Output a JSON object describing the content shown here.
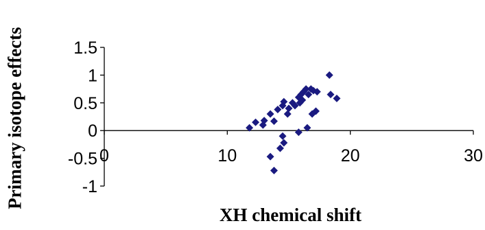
{
  "chart_data": {
    "type": "scatter",
    "title": "",
    "xlabel": "XH chemical shift",
    "ylabel": "Primary isotope effects",
    "xlim": [
      0,
      30
    ],
    "ylim": [
      -1,
      1.5
    ],
    "x_ticks": [
      0,
      10,
      20,
      30
    ],
    "x_tick_labels": [
      "0",
      "10",
      "20",
      "30"
    ],
    "y_ticks": [
      1.5,
      1,
      0.5,
      0,
      -0.5,
      -1
    ],
    "y_tick_labels": [
      "1.5",
      "1",
      "0.5",
      "0",
      "-0.5",
      "-1"
    ],
    "grid": false,
    "legend": "none",
    "marker": "diamond",
    "marker_color": "#1a1a80",
    "series": [
      {
        "points": [
          [
            11.8,
            0.05
          ],
          [
            12.3,
            0.15
          ],
          [
            12.9,
            0.1
          ],
          [
            13.0,
            0.18
          ],
          [
            13.5,
            0.3
          ],
          [
            13.8,
            0.17
          ],
          [
            14.1,
            0.38
          ],
          [
            14.5,
            0.45
          ],
          [
            14.6,
            0.52
          ],
          [
            14.9,
            0.3
          ],
          [
            15.0,
            0.4
          ],
          [
            15.3,
            0.5
          ],
          [
            15.5,
            0.45
          ],
          [
            15.8,
            0.6
          ],
          [
            15.9,
            0.5
          ],
          [
            16.0,
            0.65
          ],
          [
            16.1,
            0.55
          ],
          [
            16.2,
            0.7
          ],
          [
            16.4,
            0.75
          ],
          [
            16.6,
            0.65
          ],
          [
            16.8,
            0.75
          ],
          [
            17.0,
            0.72
          ],
          [
            17.3,
            0.7
          ],
          [
            18.3,
            1.0
          ],
          [
            18.4,
            0.65
          ],
          [
            18.9,
            0.58
          ],
          [
            16.5,
            0.05
          ],
          [
            16.9,
            0.3
          ],
          [
            17.2,
            0.35
          ],
          [
            15.8,
            -0.03
          ],
          [
            14.5,
            -0.1
          ],
          [
            14.6,
            -0.22
          ],
          [
            14.3,
            -0.32
          ],
          [
            13.5,
            -0.47
          ],
          [
            13.8,
            -0.72
          ]
        ]
      }
    ]
  }
}
